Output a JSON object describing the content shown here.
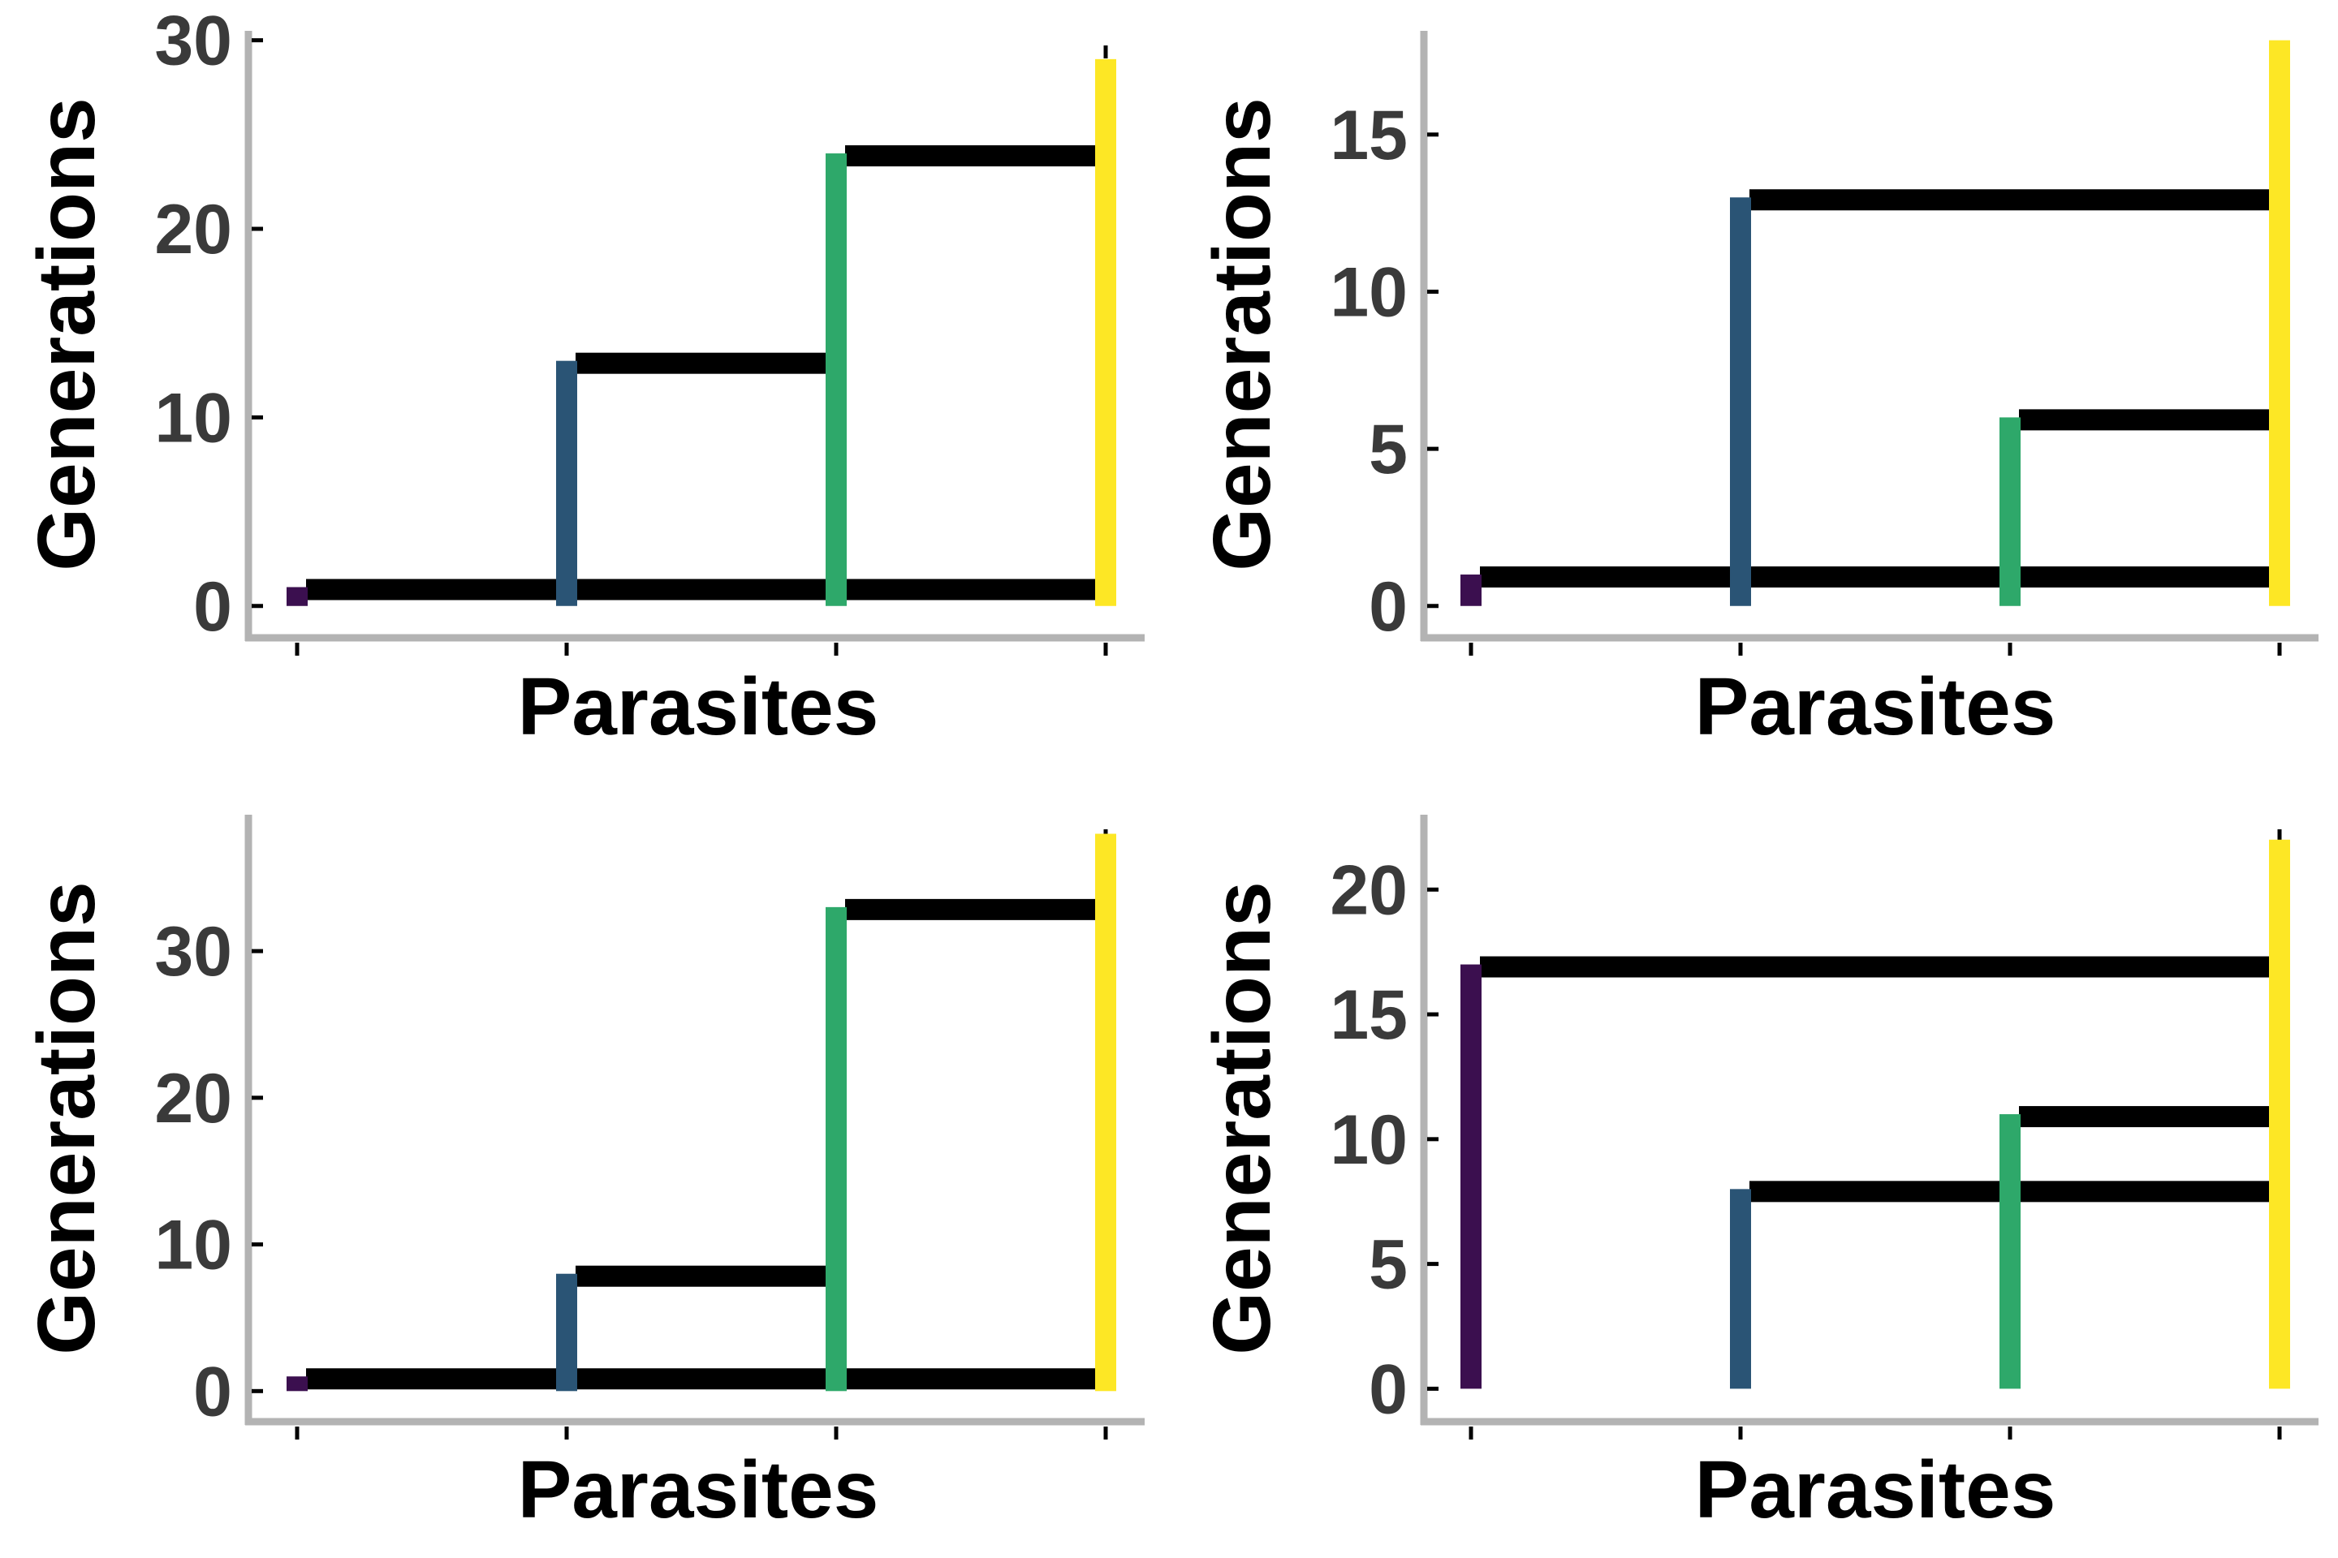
{
  "figure": {
    "panel_count": 4
  },
  "colors": {
    "axis_line": "#b3b3b3",
    "tick": "#000000",
    "bar_black": "#000000",
    "parasite_1": "#3b0f4f",
    "parasite_2": "#2a5475",
    "parasite_3": "#2ea86a",
    "parasite_4": "#fde725"
  },
  "chart_data": [
    {
      "type": "bar",
      "xlabel": "Parasites",
      "ylabel": "Generations",
      "ylim": [
        -1,
        30.5
      ],
      "yticks": [
        0,
        10,
        20,
        30
      ],
      "grid": false,
      "categories": [
        1,
        2,
        3,
        4
      ],
      "vertical_bars": [
        {
          "parasite": 1,
          "y0": 0,
          "y1": 1
        },
        {
          "parasite": 2,
          "y0": 0,
          "y1": 13
        },
        {
          "parasite": 3,
          "y0": 0,
          "y1": 24
        },
        {
          "parasite": 4,
          "y0": 0,
          "y1": 29
        }
      ],
      "links": [
        {
          "from": 1,
          "to": 4,
          "y": 1
        },
        {
          "from": 2,
          "to": 3,
          "y": 13
        },
        {
          "from": 3,
          "to": 4,
          "y": 24
        }
      ]
    },
    {
      "type": "bar",
      "xlabel": "Parasites",
      "ylabel": "Generations",
      "ylim": [
        -0.6,
        18.3
      ],
      "yticks": [
        0,
        5,
        10,
        15
      ],
      "grid": false,
      "categories": [
        1,
        2,
        3,
        4
      ],
      "vertical_bars": [
        {
          "parasite": 1,
          "y0": 0,
          "y1": 1
        },
        {
          "parasite": 2,
          "y0": 0,
          "y1": 13
        },
        {
          "parasite": 3,
          "y0": 0,
          "y1": 6
        },
        {
          "parasite": 4,
          "y0": 0,
          "y1": 18
        }
      ],
      "links": [
        {
          "from": 1,
          "to": 4,
          "y": 1
        },
        {
          "from": 2,
          "to": 4,
          "y": 13
        },
        {
          "from": 3,
          "to": 4,
          "y": 6
        }
      ]
    },
    {
      "type": "bar",
      "xlabel": "Parasites",
      "ylabel": "Generations",
      "ylim": [
        -1.2,
        39.3
      ],
      "yticks": [
        0,
        10,
        20,
        30
      ],
      "grid": false,
      "categories": [
        1,
        2,
        3,
        4
      ],
      "vertical_bars": [
        {
          "parasite": 1,
          "y0": 0,
          "y1": 1
        },
        {
          "parasite": 2,
          "y0": 0,
          "y1": 8
        },
        {
          "parasite": 3,
          "y0": 0,
          "y1": 33
        },
        {
          "parasite": 4,
          "y0": 0,
          "y1": 38
        }
      ],
      "links": [
        {
          "from": 1,
          "to": 4,
          "y": 1
        },
        {
          "from": 2,
          "to": 3,
          "y": 8
        },
        {
          "from": 3,
          "to": 4,
          "y": 33
        }
      ]
    },
    {
      "type": "bar",
      "xlabel": "Parasites",
      "ylabel": "Generations",
      "ylim": [
        -0.8,
        23
      ],
      "yticks": [
        0,
        5,
        10,
        15,
        20
      ],
      "grid": false,
      "categories": [
        1,
        2,
        3,
        4
      ],
      "vertical_bars": [
        {
          "parasite": 1,
          "y0": 0,
          "y1": 17
        },
        {
          "parasite": 2,
          "y0": 0,
          "y1": 8
        },
        {
          "parasite": 3,
          "y0": 0,
          "y1": 11
        },
        {
          "parasite": 4,
          "y0": 0,
          "y1": 22
        }
      ],
      "links": [
        {
          "from": 1,
          "to": 4,
          "y": 17
        },
        {
          "from": 2,
          "to": 4,
          "y": 8
        },
        {
          "from": 3,
          "to": 4,
          "y": 11
        }
      ]
    }
  ]
}
